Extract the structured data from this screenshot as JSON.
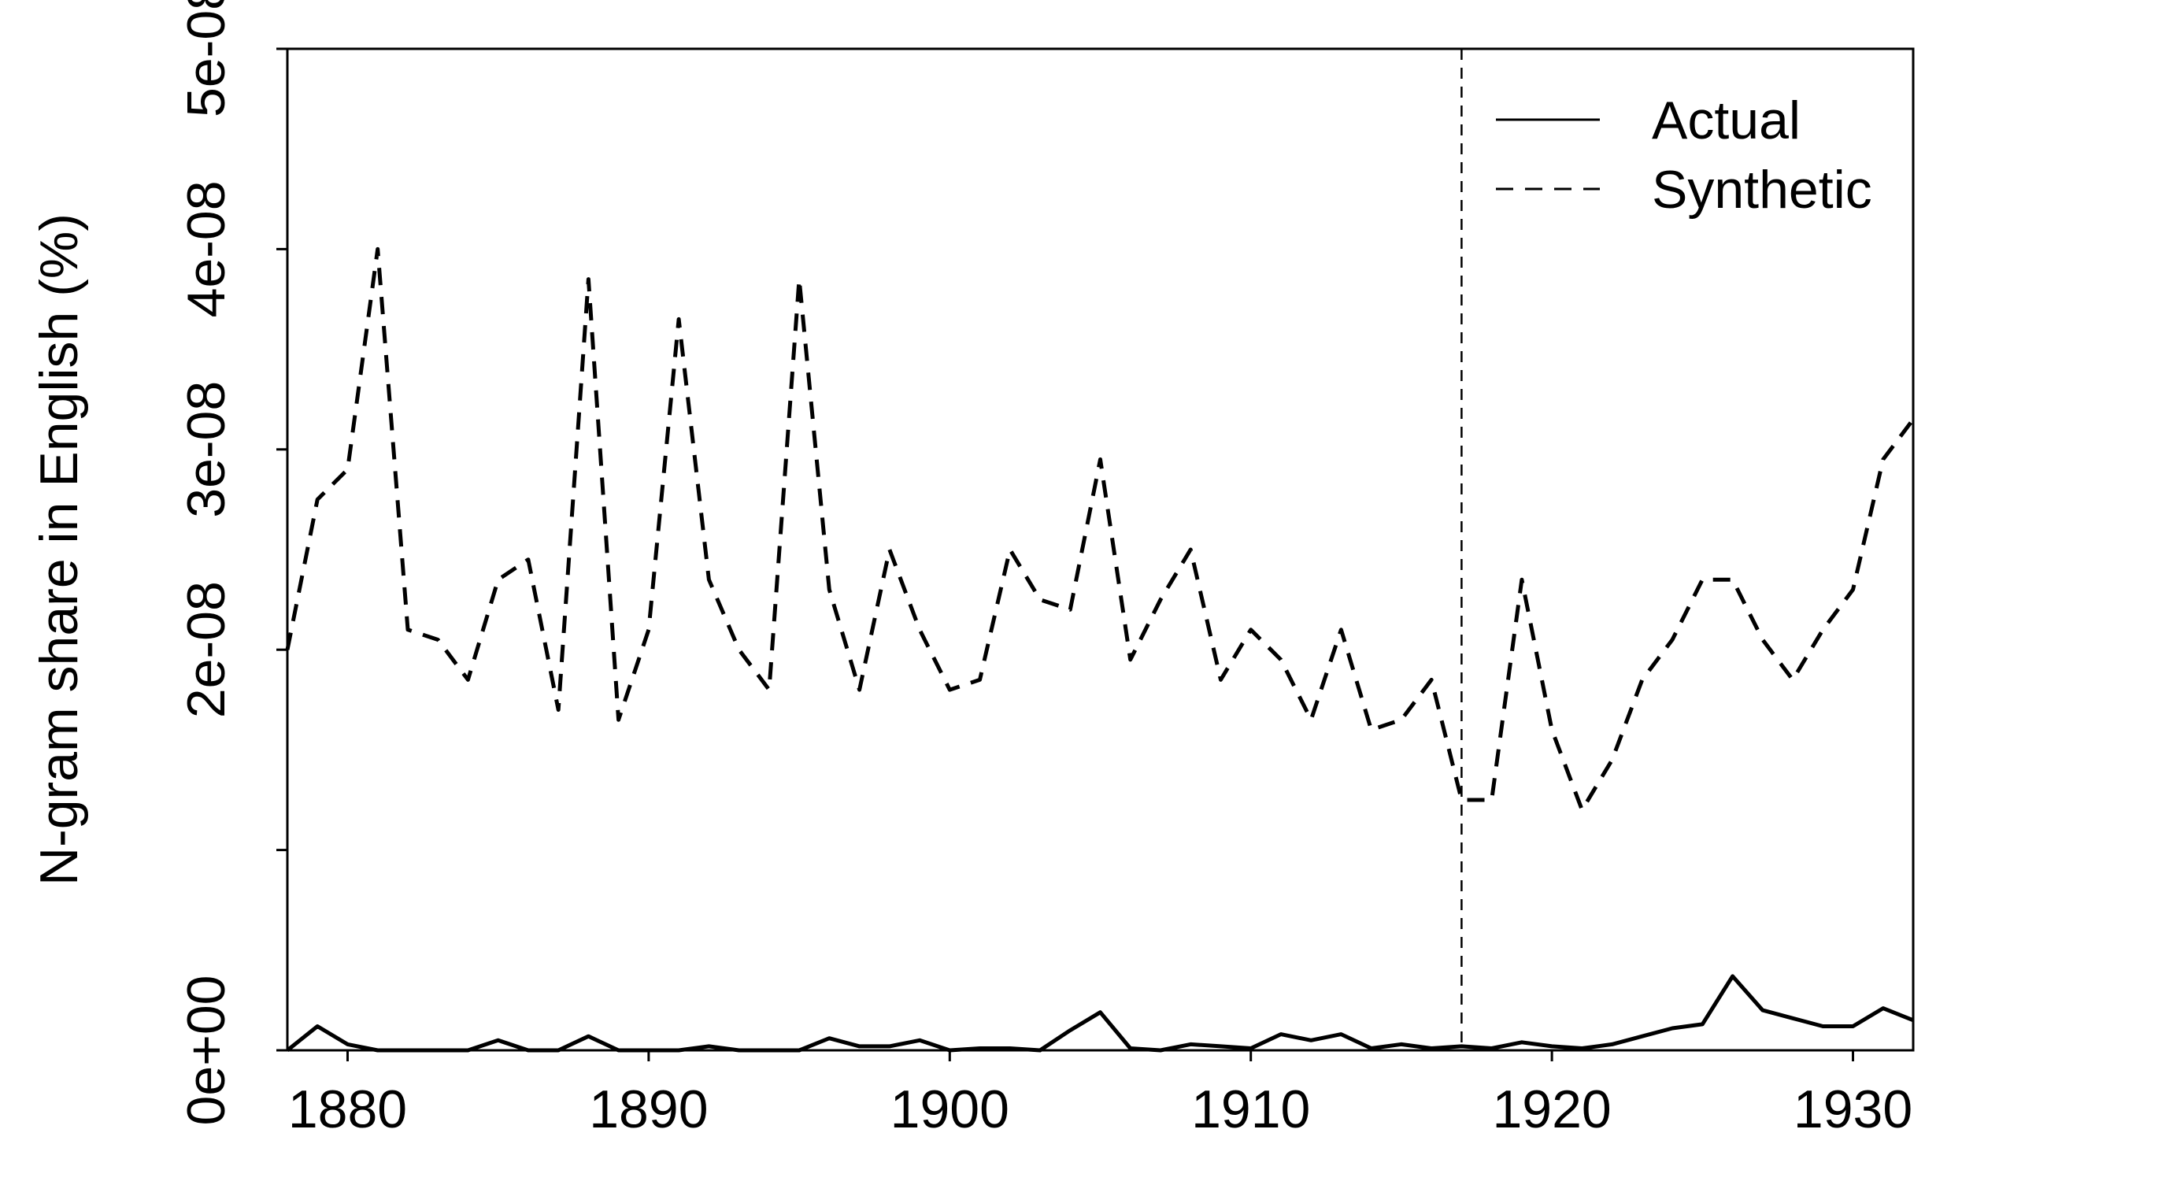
{
  "chart_data": {
    "type": "line",
    "title": "",
    "xlabel": "",
    "ylabel": "N-gram share in English (%)",
    "xlim": [
      1878,
      1932
    ],
    "ylim": [
      0,
      5e-08
    ],
    "x_ticks": [
      1880,
      1890,
      1900,
      1910,
      1920,
      1930
    ],
    "x_tick_labels": [
      "1880",
      "1890",
      "1900",
      "1910",
      "1920",
      "1930"
    ],
    "y_ticks": [
      0,
      1e-08,
      2e-08,
      3e-08,
      4e-08,
      5e-08
    ],
    "y_tick_labels": [
      "0e+00",
      "",
      "2e-08",
      "3e-08",
      "4e-08",
      "5e-08"
    ],
    "grid": false,
    "legend": {
      "position": "top-right"
    },
    "reference_lines": [
      {
        "axis": "x",
        "value": 1917,
        "style": "dashed"
      }
    ],
    "x": [
      1878,
      1879,
      1880,
      1881,
      1882,
      1883,
      1884,
      1885,
      1886,
      1887,
      1888,
      1889,
      1890,
      1891,
      1892,
      1893,
      1894,
      1895,
      1896,
      1897,
      1898,
      1899,
      1900,
      1901,
      1902,
      1903,
      1904,
      1905,
      1906,
      1907,
      1908,
      1909,
      1910,
      1911,
      1912,
      1913,
      1914,
      1915,
      1916,
      1917,
      1918,
      1919,
      1920,
      1921,
      1922,
      1923,
      1924,
      1925,
      1926,
      1927,
      1928,
      1929,
      1930,
      1931,
      1932
    ],
    "series": [
      {
        "name": "Actual",
        "style": "solid",
        "values": [
          0,
          1.2e-09,
          3e-10,
          0,
          0,
          0,
          0,
          5e-10,
          0,
          0,
          7e-10,
          0,
          0,
          0,
          2e-10,
          0,
          0,
          0,
          6e-10,
          2e-10,
          2e-10,
          5e-10,
          0,
          1e-10,
          1e-10,
          0,
          1e-09,
          1.9e-09,
          1e-10,
          0,
          3e-10,
          2e-10,
          1e-10,
          8e-10,
          5e-10,
          8e-10,
          1e-10,
          3e-10,
          1e-10,
          2e-10,
          1e-10,
          4e-10,
          2e-10,
          1e-10,
          3e-10,
          7e-10,
          1.1e-09,
          1.3e-09,
          3.7e-09,
          2e-09,
          1.6e-09,
          1.2e-09,
          1.2e-09,
          2.1e-09,
          1.5e-09
        ]
      },
      {
        "name": "Synthetic",
        "style": "dashed",
        "values": [
          2e-08,
          2.75e-08,
          2.9e-08,
          4e-08,
          2.1e-08,
          2.05e-08,
          1.85e-08,
          2.35e-08,
          2.45e-08,
          1.7e-08,
          3.85e-08,
          1.65e-08,
          2.1e-08,
          3.65e-08,
          2.35e-08,
          2e-08,
          1.8e-08,
          3.85e-08,
          2.3e-08,
          1.8e-08,
          2.5e-08,
          2.1e-08,
          1.8e-08,
          1.85e-08,
          2.5e-08,
          2.25e-08,
          2.2e-08,
          2.95e-08,
          1.95e-08,
          2.25e-08,
          2.5e-08,
          1.85e-08,
          2.1e-08,
          1.95e-08,
          1.65e-08,
          2.1e-08,
          1.6e-08,
          1.65e-08,
          1.85e-08,
          1.25e-08,
          1.25e-08,
          2.35e-08,
          1.6e-08,
          1.2e-08,
          1.45e-08,
          1.85e-08,
          2.05e-08,
          2.35e-08,
          2.35e-08,
          2.05e-08,
          1.85e-08,
          2.1e-08,
          2.3e-08,
          2.95e-08,
          3.15e-08
        ]
      }
    ]
  }
}
